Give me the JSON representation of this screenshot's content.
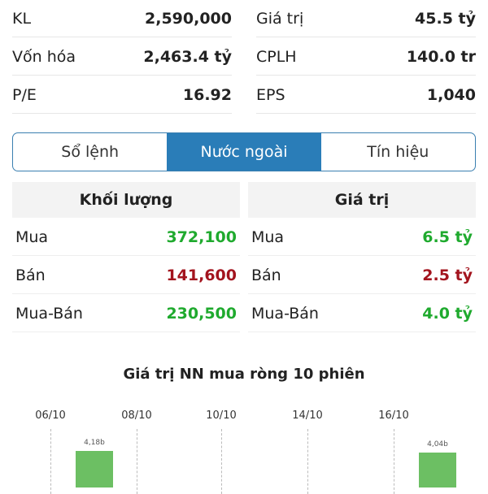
{
  "stats": [
    {
      "label": "KL",
      "value": "2,590,000"
    },
    {
      "label": "Giá trị",
      "value": "45.5 tỷ"
    },
    {
      "label": "Vốn hóa",
      "value": "2,463.4 tỷ"
    },
    {
      "label": "CPLH",
      "value": "140.0 tr"
    },
    {
      "label": "P/E",
      "value": "16.92"
    },
    {
      "label": "EPS",
      "value": "1,040"
    }
  ],
  "tabs": [
    {
      "label": "Sổ lệnh"
    },
    {
      "label": "Nước ngoài",
      "active": true
    },
    {
      "label": "Tín hiệu"
    }
  ],
  "volume": {
    "header": "Khối lượng",
    "rows": [
      {
        "label": "Mua",
        "value": "372,100"
      },
      {
        "label": "Bán",
        "value": "141,600"
      },
      {
        "label": "Mua-Bán",
        "value": "230,500"
      }
    ]
  },
  "value": {
    "header": "Giá trị",
    "rows": [
      {
        "label": "Mua",
        "value": "6.5 tỷ"
      },
      {
        "label": "Bán",
        "value": "2.5 tỷ"
      },
      {
        "label": "Mua-Bán",
        "value": "4.0 tỷ"
      }
    ]
  },
  "colors": {
    "buy": "#1faa2e",
    "sell": "#a3141e",
    "accent": "#2a7db8",
    "bar": "#6cbf63"
  },
  "chart_data": {
    "type": "bar",
    "title": "Giá trị NN mua ròng 10 phiên",
    "tick_labels": [
      "06/10",
      "08/10",
      "10/10",
      "14/10",
      "16/10"
    ],
    "bars": [
      {
        "label": "4,18b",
        "value": 4.18
      },
      {
        "label": "4,04b",
        "value": 4.04
      }
    ]
  }
}
